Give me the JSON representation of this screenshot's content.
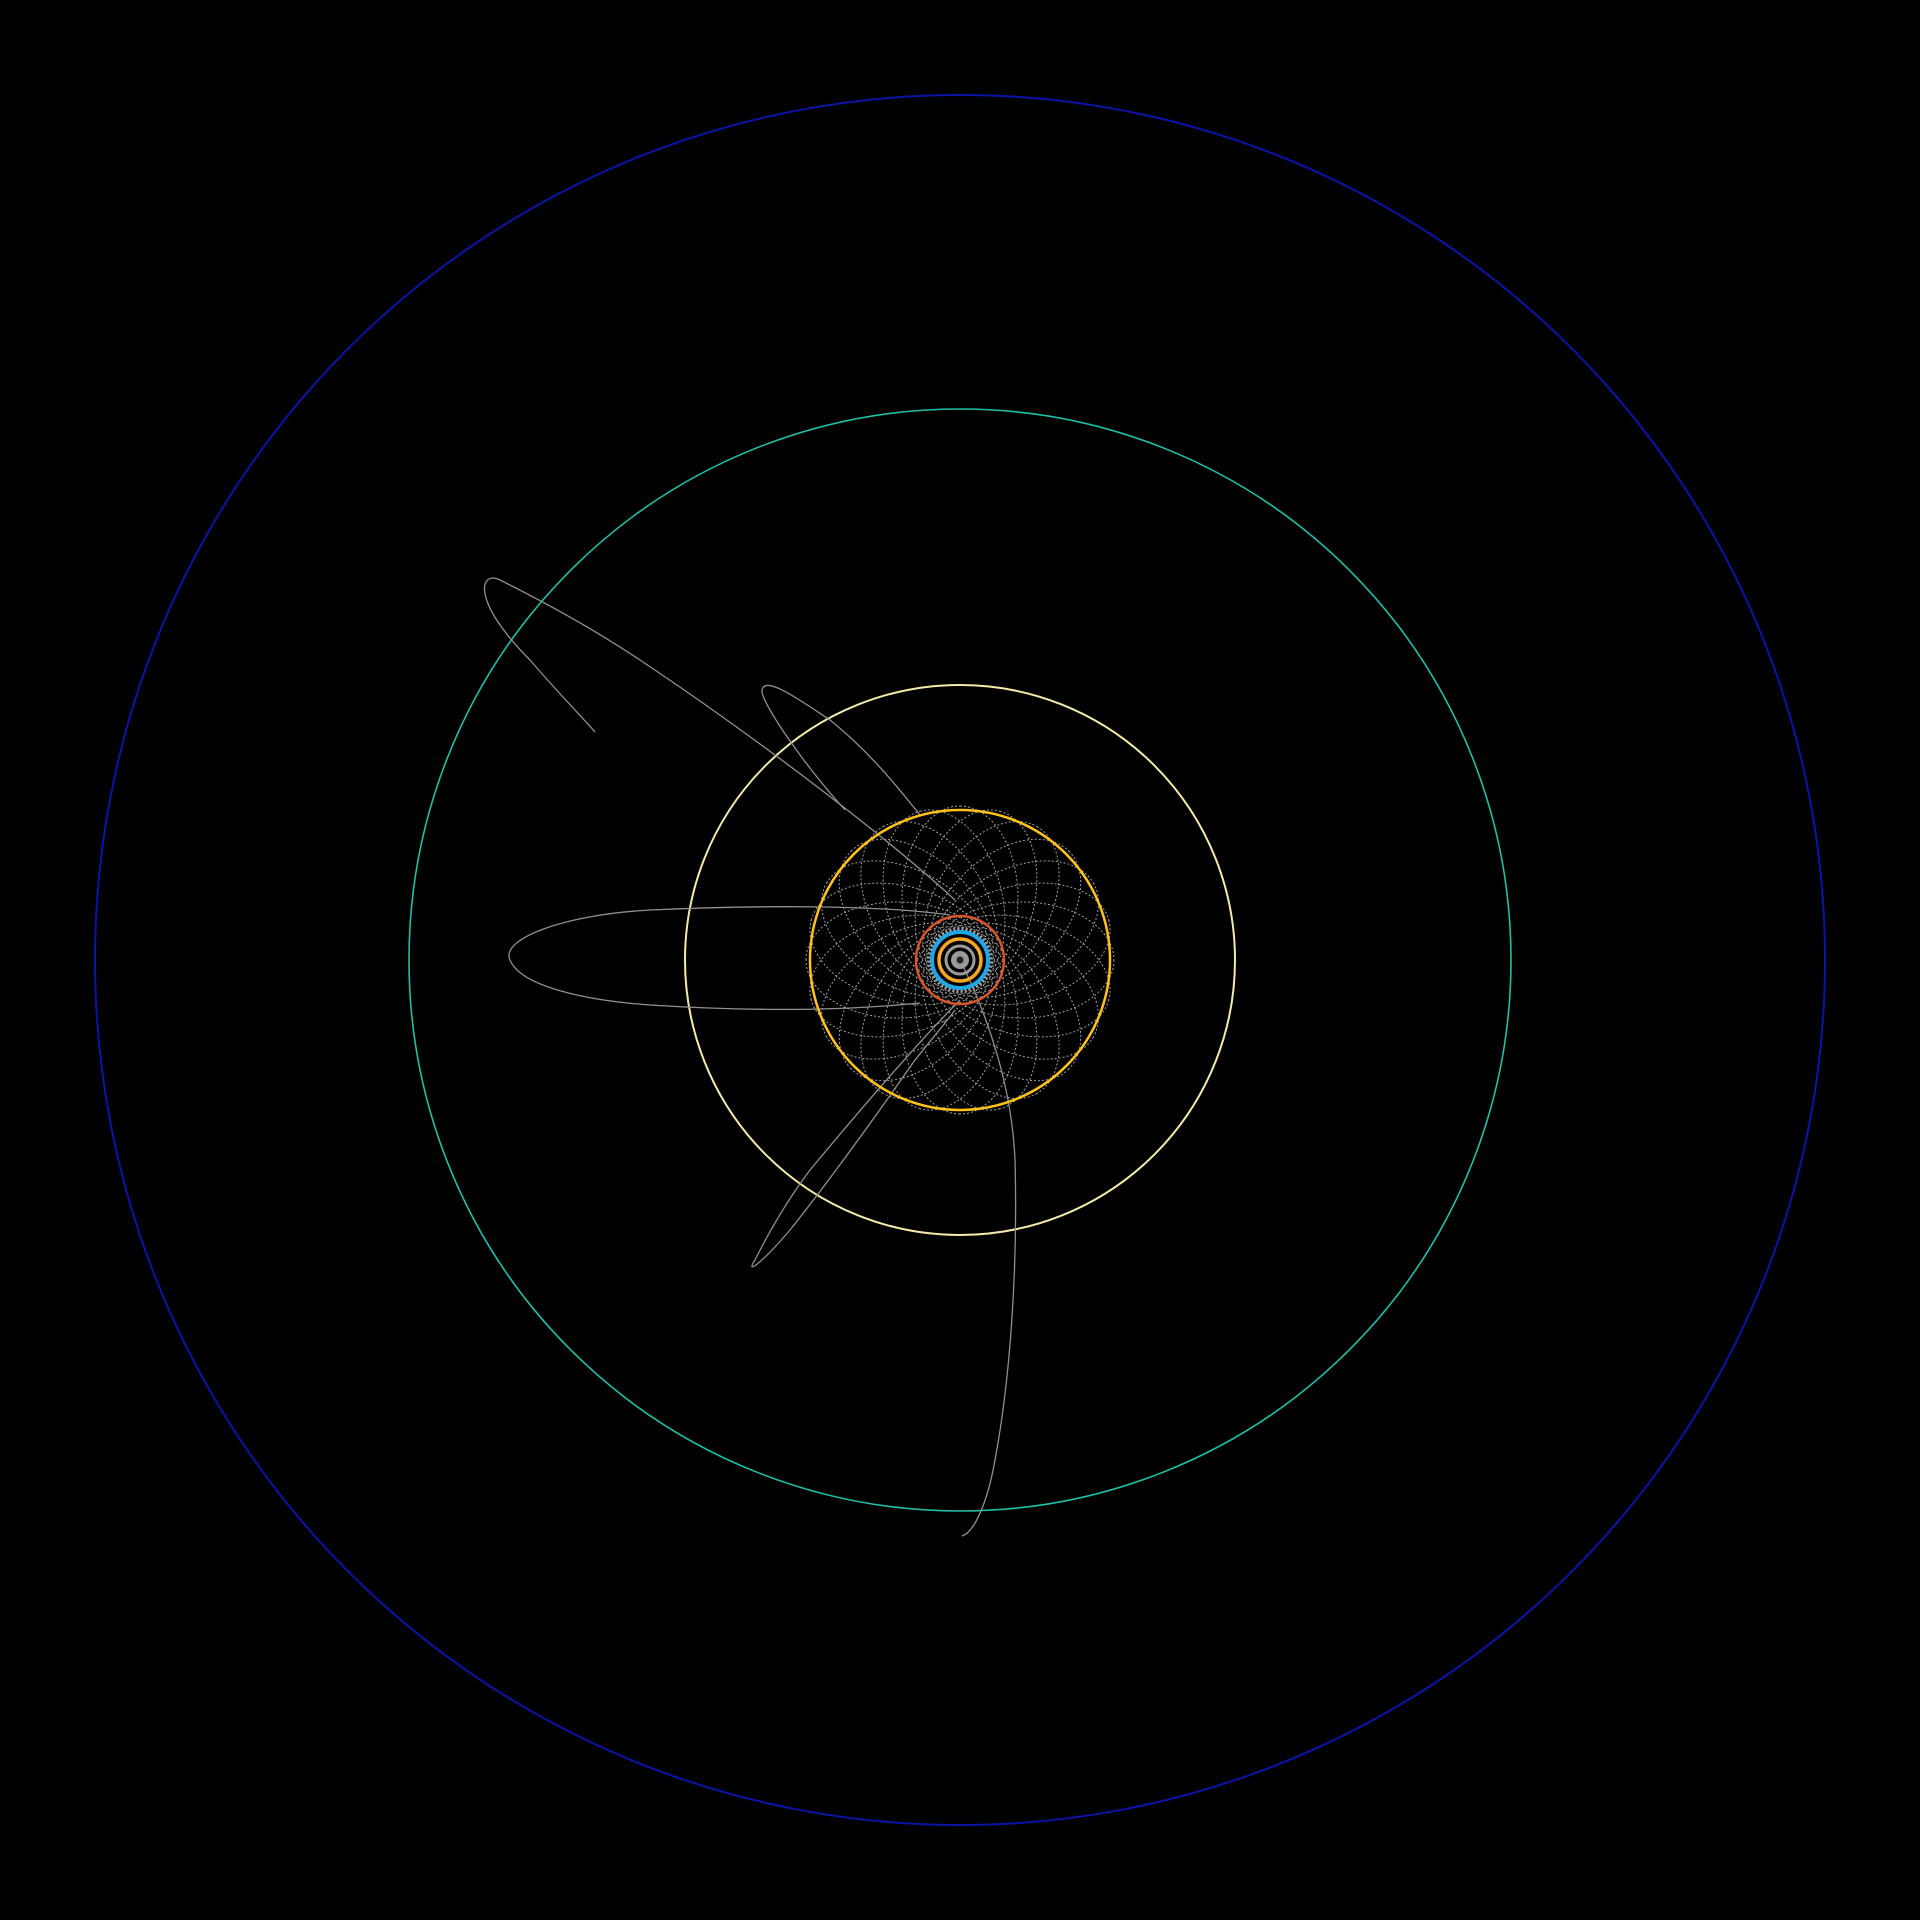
{
  "background": "#000000",
  "sun": {
    "color": "#9a9a9a",
    "core_color": "#222222"
  },
  "planet_orbits": [
    {
      "name": "mercury-orbit",
      "color": "#9a9a9a"
    },
    {
      "name": "venus-orbit",
      "color": "#f5a623"
    },
    {
      "name": "earth-orbit",
      "color": "#1ea7e4"
    },
    {
      "name": "mars-orbit",
      "color": "#d9542a"
    },
    {
      "name": "jupiter-orbit",
      "color": "#ffc21a"
    },
    {
      "name": "saturn-orbit",
      "color": "#f5eaa8"
    },
    {
      "name": "uranus-orbit",
      "color": "#20c0a8"
    },
    {
      "name": "neptune-orbit",
      "color": "#0a14a8"
    }
  ],
  "rosette": {
    "name": "precessing-orbit-rosette",
    "color": "#a0a0a0",
    "petals": 24
  },
  "comet_orbits": [
    {
      "name": "comet-orbit-northwest",
      "color": "#909090"
    },
    {
      "name": "comet-orbit-west",
      "color": "#909090"
    },
    {
      "name": "comet-orbit-southwest",
      "color": "#909090"
    },
    {
      "name": "comet-orbit-south",
      "color": "#909090"
    }
  ]
}
